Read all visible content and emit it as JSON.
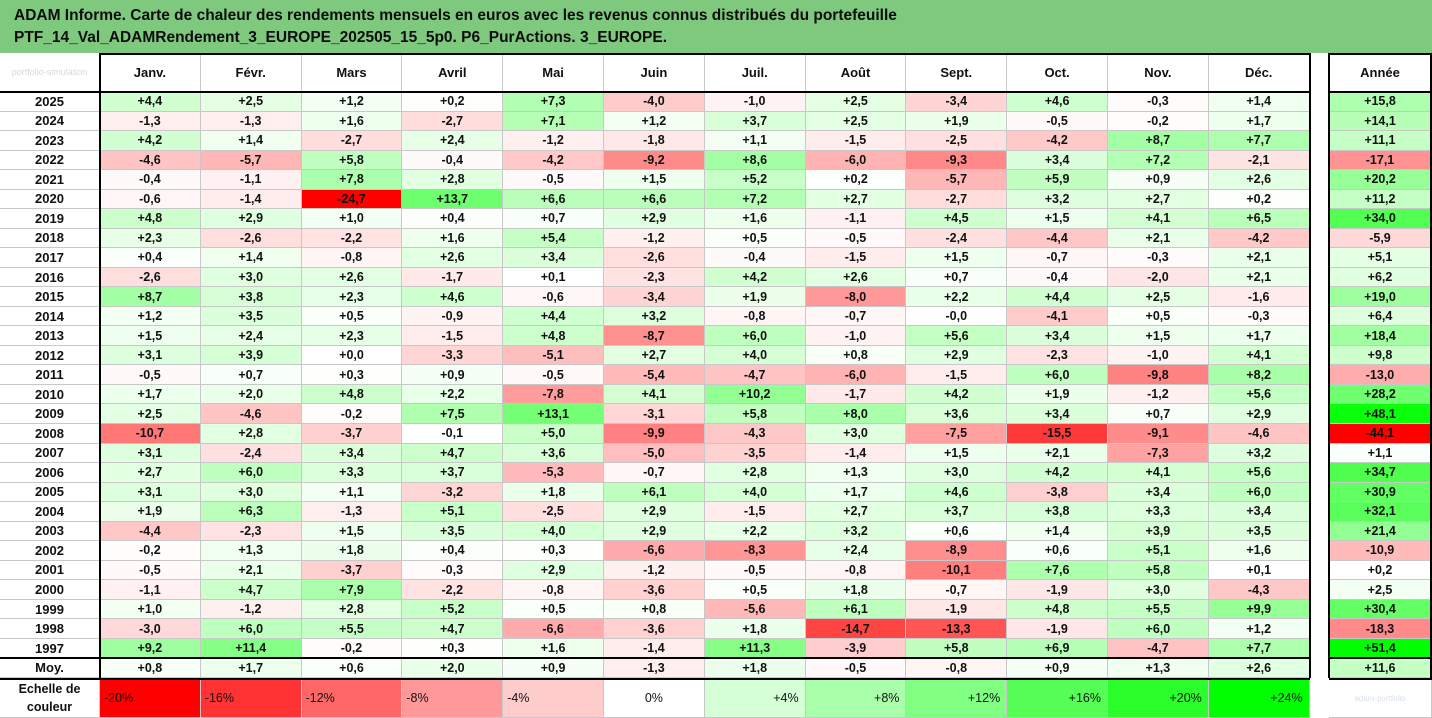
{
  "title_line1": "ADAM Informe. Carte de chaleur des rendements mensuels en euros avec les revenus connus distribués du portefeuille",
  "title_line2": "PTF_14_Val_ADAMRendement_3_EUROPE_202505_15_5p0. P6_PurActions. 3_EUROPE.",
  "watermark_top": "portfolio-simulation",
  "watermark_bottom": "adam-portfolio",
  "colors": {
    "title_bg": "#7fc97f",
    "neg_max": "#ff0000",
    "pos_max": "#00ff00",
    "neutral": "#ffffff"
  },
  "chart_data": {
    "type": "heatmap",
    "columns": [
      "Janv.",
      "Févr.",
      "Mars",
      "Avril",
      "Mai",
      "Juin",
      "Juil.",
      "Août",
      "Sept.",
      "Oct.",
      "Nov.",
      "Déc."
    ],
    "total_column": "Année",
    "rows": [
      {
        "year": "2025",
        "values": [
          "+4,4",
          "+2,5",
          "+1,2",
          "+0,2",
          "+7,3",
          "-4,0",
          "-1,0",
          "+2,5",
          "-3,4",
          "+4,6",
          "-0,3",
          "+1,4"
        ],
        "total": "+15,8"
      },
      {
        "year": "2024",
        "values": [
          "-1,3",
          "-1,3",
          "+1,6",
          "-2,7",
          "+7,1",
          "+1,2",
          "+3,7",
          "+2,5",
          "+1,9",
          "-0,5",
          "-0,2",
          "+1,7"
        ],
        "total": "+14,1"
      },
      {
        "year": "2023",
        "values": [
          "+4,2",
          "+1,4",
          "-2,7",
          "+2,4",
          "-1,2",
          "-1,8",
          "+1,1",
          "-1,5",
          "-2,5",
          "-4,2",
          "+8,7",
          "+7,7"
        ],
        "total": "+11,1"
      },
      {
        "year": "2022",
        "values": [
          "-4,6",
          "-5,7",
          "+5,8",
          "-0,4",
          "-4,2",
          "-9,2",
          "+8,6",
          "-6,0",
          "-9,3",
          "+3,4",
          "+7,2",
          "-2,1"
        ],
        "total": "-17,1"
      },
      {
        "year": "2021",
        "values": [
          "-0,4",
          "-1,1",
          "+7,8",
          "+2,8",
          "-0,5",
          "+1,5",
          "+5,2",
          "+0,2",
          "-5,7",
          "+5,9",
          "+0,9",
          "+2,6"
        ],
        "total": "+20,2"
      },
      {
        "year": "2020",
        "values": [
          "-0,6",
          "-1,4",
          "-24,7",
          "+13,7",
          "+6,6",
          "+6,6",
          "+7,2",
          "+2,7",
          "-2,7",
          "+3,2",
          "+2,7",
          "+0,2"
        ],
        "total": "+11,2"
      },
      {
        "year": "2019",
        "values": [
          "+4,8",
          "+2,9",
          "+1,0",
          "+0,4",
          "+0,7",
          "+2,9",
          "+1,6",
          "-1,1",
          "+4,5",
          "+1,5",
          "+4,1",
          "+6,5"
        ],
        "total": "+34,0"
      },
      {
        "year": "2018",
        "values": [
          "+2,3",
          "-2,6",
          "-2,2",
          "+1,6",
          "+5,4",
          "-1,2",
          "+0,5",
          "-0,5",
          "-2,4",
          "-4,4",
          "+2,1",
          "-4,2"
        ],
        "total": "-5,9"
      },
      {
        "year": "2017",
        "values": [
          "+0,4",
          "+1,4",
          "-0,8",
          "+2,6",
          "+3,4",
          "-2,6",
          "-0,4",
          "-1,5",
          "+1,5",
          "-0,7",
          "-0,3",
          "+2,1"
        ],
        "total": "+5,1"
      },
      {
        "year": "2016",
        "values": [
          "-2,6",
          "+3,0",
          "+2,6",
          "-1,7",
          "+0,1",
          "-2,3",
          "+4,2",
          "+2,6",
          "+0,7",
          "-0,4",
          "-2,0",
          "+2,1"
        ],
        "total": "+6,2"
      },
      {
        "year": "2015",
        "values": [
          "+8,7",
          "+3,8",
          "+2,3",
          "+4,6",
          "-0,6",
          "-3,4",
          "+1,9",
          "-8,0",
          "+2,2",
          "+4,4",
          "+2,5",
          "-1,6"
        ],
        "total": "+19,0"
      },
      {
        "year": "2014",
        "values": [
          "+1,2",
          "+3,5",
          "+0,5",
          "-0,9",
          "+4,4",
          "+3,2",
          "-0,8",
          "-0,7",
          "-0,0",
          "-4,1",
          "+0,5",
          "-0,3"
        ],
        "total": "+6,4"
      },
      {
        "year": "2013",
        "values": [
          "+1,5",
          "+2,4",
          "+2,3",
          "-1,5",
          "+4,8",
          "-8,7",
          "+6,0",
          "-1,0",
          "+5,6",
          "+3,4",
          "+1,5",
          "+1,7"
        ],
        "total": "+18,4"
      },
      {
        "year": "2012",
        "values": [
          "+3,1",
          "+3,9",
          "+0,0",
          "-3,3",
          "-5,1",
          "+2,7",
          "+4,0",
          "+0,8",
          "+2,9",
          "-2,3",
          "-1,0",
          "+4,1"
        ],
        "total": "+9,8"
      },
      {
        "year": "2011",
        "values": [
          "-0,5",
          "+0,7",
          "+0,3",
          "+0,9",
          "-0,5",
          "-5,4",
          "-4,7",
          "-6,0",
          "-1,5",
          "+6,0",
          "-9,8",
          "+8,2"
        ],
        "total": "-13,0"
      },
      {
        "year": "2010",
        "values": [
          "+1,7",
          "+2,0",
          "+4,8",
          "+2,2",
          "-7,8",
          "+4,1",
          "+10,2",
          "-1,7",
          "+4,2",
          "+1,9",
          "-1,2",
          "+5,6"
        ],
        "total": "+28,2"
      },
      {
        "year": "2009",
        "values": [
          "+2,5",
          "-4,6",
          "-0,2",
          "+7,5",
          "+13,1",
          "-3,1",
          "+5,8",
          "+8,0",
          "+3,6",
          "+3,4",
          "+0,7",
          "+2,9"
        ],
        "total": "+48,1"
      },
      {
        "year": "2008",
        "values": [
          "-10,7",
          "+2,8",
          "-3,7",
          "-0,1",
          "+5,0",
          "-9,9",
          "-4,3",
          "+3,0",
          "-7,5",
          "-15,5",
          "-9,1",
          "-4,6"
        ],
        "total": "-44,1"
      },
      {
        "year": "2007",
        "values": [
          "+3,1",
          "-2,4",
          "+3,4",
          "+4,7",
          "+3,6",
          "-5,0",
          "-3,5",
          "-1,4",
          "+1,5",
          "+2,1",
          "-7,3",
          "+3,2"
        ],
        "total": "+1,1"
      },
      {
        "year": "2006",
        "values": [
          "+2,7",
          "+6,0",
          "+3,3",
          "+3,7",
          "-5,3",
          "-0,7",
          "+2,8",
          "+1,3",
          "+3,0",
          "+4,2",
          "+4,1",
          "+5,6"
        ],
        "total": "+34,7"
      },
      {
        "year": "2005",
        "values": [
          "+3,1",
          "+3,0",
          "+1,1",
          "-3,2",
          "+1,8",
          "+6,1",
          "+4,0",
          "+1,7",
          "+4,6",
          "-3,8",
          "+3,4",
          "+6,0"
        ],
        "total": "+30,9"
      },
      {
        "year": "2004",
        "values": [
          "+1,9",
          "+6,3",
          "-1,3",
          "+5,1",
          "-2,5",
          "+2,9",
          "-1,5",
          "+2,7",
          "+3,7",
          "+3,8",
          "+3,3",
          "+3,4"
        ],
        "total": "+32,1"
      },
      {
        "year": "2003",
        "values": [
          "-4,4",
          "-2,3",
          "+1,5",
          "+3,5",
          "+4,0",
          "+2,9",
          "+2,2",
          "+3,2",
          "+0,6",
          "+1,4",
          "+3,9",
          "+3,5"
        ],
        "total": "+21,4"
      },
      {
        "year": "2002",
        "values": [
          "-0,2",
          "+1,3",
          "+1,8",
          "+0,4",
          "+0,3",
          "-6,6",
          "-8,3",
          "+2,4",
          "-8,9",
          "+0,6",
          "+5,1",
          "+1,6"
        ],
        "total": "-10,9"
      },
      {
        "year": "2001",
        "values": [
          "-0,5",
          "+2,1",
          "-3,7",
          "-0,3",
          "+2,9",
          "-1,2",
          "-0,5",
          "-0,8",
          "-10,1",
          "+7,6",
          "+5,8",
          "+0,1"
        ],
        "total": "+0,2"
      },
      {
        "year": "2000",
        "values": [
          "-1,1",
          "+4,7",
          "+7,9",
          "-2,2",
          "-0,8",
          "-3,6",
          "+0,5",
          "+1,8",
          "-0,7",
          "-1,9",
          "+3,0",
          "-4,3"
        ],
        "total": "+2,5"
      },
      {
        "year": "1999",
        "values": [
          "+1,0",
          "-1,2",
          "+2,8",
          "+5,2",
          "+0,5",
          "+0,8",
          "-5,6",
          "+6,1",
          "-1,9",
          "+4,8",
          "+5,5",
          "+9,9"
        ],
        "total": "+30,4"
      },
      {
        "year": "1998",
        "values": [
          "-3,0",
          "+6,0",
          "+5,5",
          "+4,7",
          "-6,6",
          "-3,6",
          "+1,8",
          "-14,7",
          "-13,3",
          "-1,9",
          "+6,0",
          "+1,2"
        ],
        "total": "-18,3"
      },
      {
        "year": "1997",
        "values": [
          "+9,2",
          "+11,4",
          "-0,2",
          "+0,3",
          "+1,6",
          "-1,4",
          "+11,3",
          "-3,9",
          "+5,8",
          "+6,9",
          "-4,7",
          "+7,7"
        ],
        "total": "+51,4"
      }
    ],
    "average_row": {
      "label": "Moy.",
      "values": [
        "+0,8",
        "+1,7",
        "+0,6",
        "+2,0",
        "+0,9",
        "-1,3",
        "+1,8",
        "-0,5",
        "-0,8",
        "+0,9",
        "+1,3",
        "+2,6"
      ],
      "total": "+11,6"
    },
    "scale": {
      "label_line1": "Echelle de",
      "label_line2": "couleur",
      "steps": [
        {
          "label": "-20%",
          "value": -20
        },
        {
          "label": "-16%",
          "value": -16
        },
        {
          "label": "-12%",
          "value": -12
        },
        {
          "label": "-8%",
          "value": -8
        },
        {
          "label": "-4%",
          "value": -4
        },
        {
          "label": "0%",
          "value": 0
        },
        {
          "label": "+4%",
          "value": 4
        },
        {
          "label": "+8%",
          "value": 8
        },
        {
          "label": "+12%",
          "value": 12
        },
        {
          "label": "+16%",
          "value": 16
        },
        {
          "label": "+20%",
          "value": 20
        },
        {
          "label": "+24%",
          "value": 24
        }
      ]
    },
    "color_range_monthly": [
      -20,
      24
    ],
    "color_range_yearly": [
      -40,
      50
    ]
  }
}
